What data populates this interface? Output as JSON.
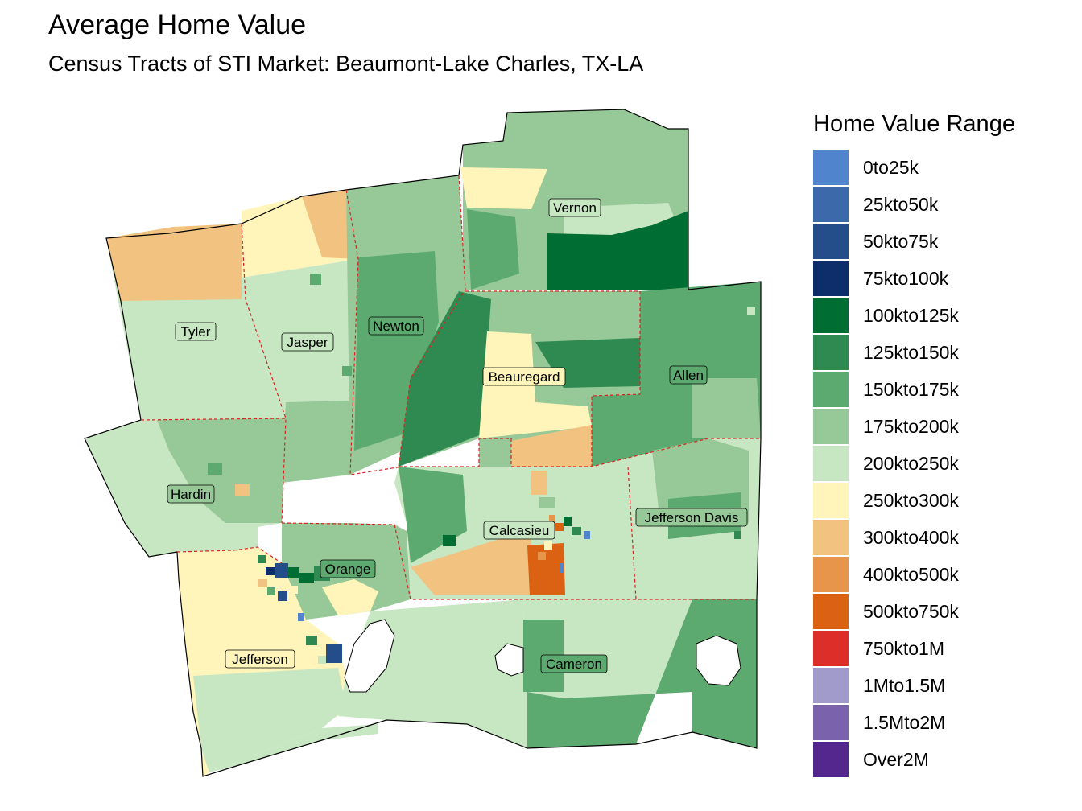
{
  "title": "Average Home Value",
  "subtitle": "Census Tracts of STI Market: Beaumont-Lake Charles, TX-LA",
  "legend": {
    "title": "Home Value Range",
    "items": [
      {
        "label": "0to25k",
        "color": "#5084cc"
      },
      {
        "label": "25kto50k",
        "color": "#3c69aa"
      },
      {
        "label": "50kto75k",
        "color": "#234e8a"
      },
      {
        "label": "75kto100k",
        "color": "#0d2e6a"
      },
      {
        "label": "100kto125k",
        "color": "#006d33"
      },
      {
        "label": "125kto150k",
        "color": "#2f8a51"
      },
      {
        "label": "150kto175k",
        "color": "#5daa70"
      },
      {
        "label": "175kto200k",
        "color": "#96c997"
      },
      {
        "label": "200kto250k",
        "color": "#c7e6c2"
      },
      {
        "label": "250kto300k",
        "color": "#fff5ba"
      },
      {
        "label": "300kto400k",
        "color": "#f2c380"
      },
      {
        "label": "400kto500k",
        "color": "#e7954a"
      },
      {
        "label": "500kto750k",
        "color": "#db6213"
      },
      {
        "label": "750kto1M",
        "color": "#de2e2a"
      },
      {
        "label": "1Mto1.5M",
        "color": "#a09bca"
      },
      {
        "label": "1.5Mto2M",
        "color": "#7b62ad"
      },
      {
        "label": "Over2M",
        "color": "#54278f"
      }
    ]
  },
  "parishes": [
    {
      "name": "Tyler"
    },
    {
      "name": "Jasper"
    },
    {
      "name": "Newton"
    },
    {
      "name": "Vernon"
    },
    {
      "name": "Beauregard"
    },
    {
      "name": "Allen"
    },
    {
      "name": "Hardin"
    },
    {
      "name": "Jefferson Davis"
    },
    {
      "name": "Calcasieu"
    },
    {
      "name": "Orange"
    },
    {
      "name": "Jefferson"
    },
    {
      "name": "Cameron"
    }
  ]
}
